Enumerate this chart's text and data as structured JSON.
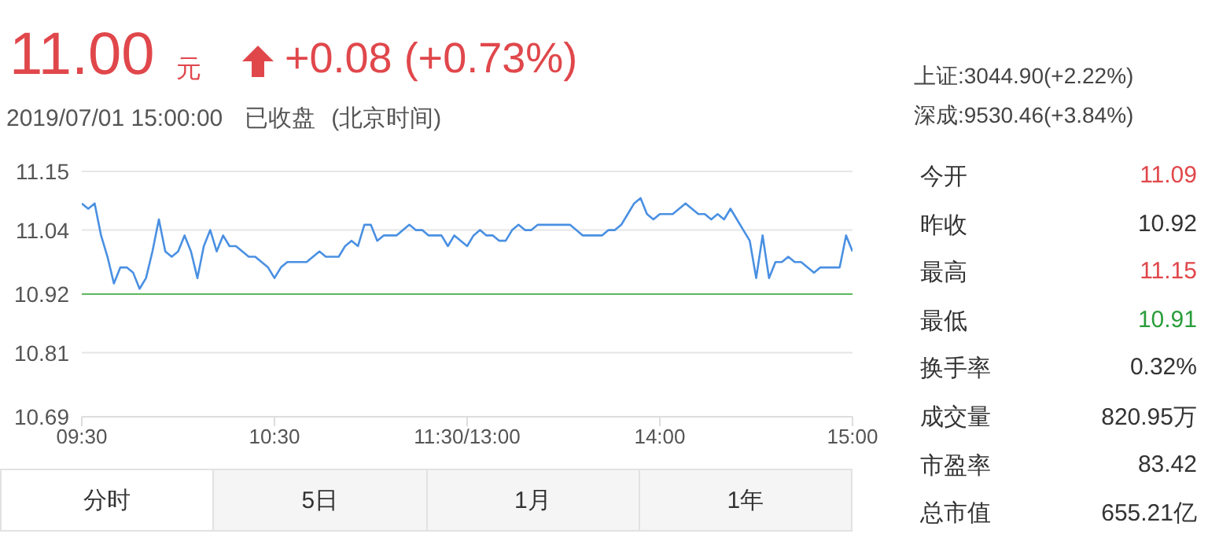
{
  "chart_data": {
    "type": "line",
    "title": "11.00",
    "annotations": [
      "元",
      "+0.08 (+0.73%)",
      "2019/07/01 15:00:00",
      "已收盘",
      "(北京时间)",
      "上证:3044.90(+2.22%)",
      "深成:9530.46(+3.84%)",
      "今开",
      "11.09",
      "昨收",
      "10.92",
      "最高",
      "11.15",
      "最低",
      "10.91",
      "换手率",
      "0.32%",
      "成交量",
      "820.95万",
      "市盈率",
      "83.42",
      "总市值",
      "655.21亿",
      "分时",
      "5日",
      "1月",
      "1年"
    ],
    "categories": [
      "09:30",
      null,
      null,
      null,
      null,
      null,
      null,
      null,
      null,
      null,
      null,
      null,
      null,
      null,
      null,
      null,
      null,
      null,
      null,
      null,
      null,
      null,
      null,
      null,
      null,
      null,
      null,
      null,
      null,
      null,
      "10:30",
      null,
      null,
      null,
      null,
      null,
      null,
      null,
      null,
      null,
      null,
      null,
      null,
      null,
      null,
      null,
      null,
      null,
      null,
      null,
      null,
      null,
      null,
      null,
      null,
      null,
      null,
      null,
      null,
      null,
      "11:30/13:00",
      null,
      null,
      null,
      null,
      null,
      null,
      null,
      null,
      null,
      null,
      null,
      null,
      null,
      null,
      null,
      null,
      null,
      null,
      null,
      null,
      null,
      null,
      null,
      null,
      null,
      null,
      null,
      null,
      null,
      "14:00",
      null,
      null,
      null,
      null,
      null,
      null,
      null,
      null,
      null,
      null,
      null,
      null,
      null,
      null,
      null,
      null,
      null,
      null,
      null,
      null,
      null,
      null,
      null,
      null,
      null,
      null,
      null,
      null,
      null,
      "15:00"
    ],
    "ylim": [
      10.69,
      11.15
    ],
    "yticks": [
      10.69,
      10.81,
      10.92,
      11.04,
      11.15
    ],
    "grid": "y",
    "marker": "none",
    "line_style": "solid",
    "legend": false,
    "ref_lines": [
      {
        "axis": "y",
        "value": 10.92,
        "color": "#5cb85c"
      }
    ],
    "series": [
      {
        "color": "#4a90e2",
        "values": [
          11.09,
          11.08,
          11.09,
          11.03,
          10.99,
          10.94,
          10.97,
          10.97,
          10.96,
          10.93,
          10.95,
          11.0,
          11.06,
          11.0,
          10.99,
          11.0,
          11.03,
          11.0,
          10.95,
          11.01,
          11.04,
          11.0,
          11.03,
          11.01,
          11.01,
          11.0,
          10.99,
          10.99,
          10.98,
          10.97,
          10.95,
          10.97,
          10.98,
          10.98,
          10.98,
          10.98,
          10.99,
          11.0,
          10.99,
          10.99,
          10.99,
          11.01,
          11.02,
          11.01,
          11.05,
          11.05,
          11.02,
          11.03,
          11.03,
          11.03,
          11.04,
          11.05,
          11.04,
          11.04,
          11.03,
          11.03,
          11.03,
          11.01,
          11.03,
          11.02,
          11.01,
          11.03,
          11.04,
          11.03,
          11.03,
          11.02,
          11.02,
          11.04,
          11.05,
          11.04,
          11.04,
          11.05,
          11.05,
          11.05,
          11.05,
          11.05,
          11.05,
          11.04,
          11.03,
          11.03,
          11.03,
          11.03,
          11.04,
          11.04,
          11.05,
          11.07,
          11.09,
          11.1,
          11.07,
          11.06,
          11.07,
          11.07,
          11.07,
          11.08,
          11.09,
          11.08,
          11.07,
          11.07,
          11.06,
          11.07,
          11.06,
          11.08,
          11.06,
          11.04,
          11.02,
          10.95,
          11.03,
          10.95,
          10.98,
          10.98,
          10.99,
          10.98,
          10.98,
          10.97,
          10.96,
          10.97,
          10.97,
          10.97,
          10.97,
          11.03,
          11.0
        ]
      }
    ]
  }
}
